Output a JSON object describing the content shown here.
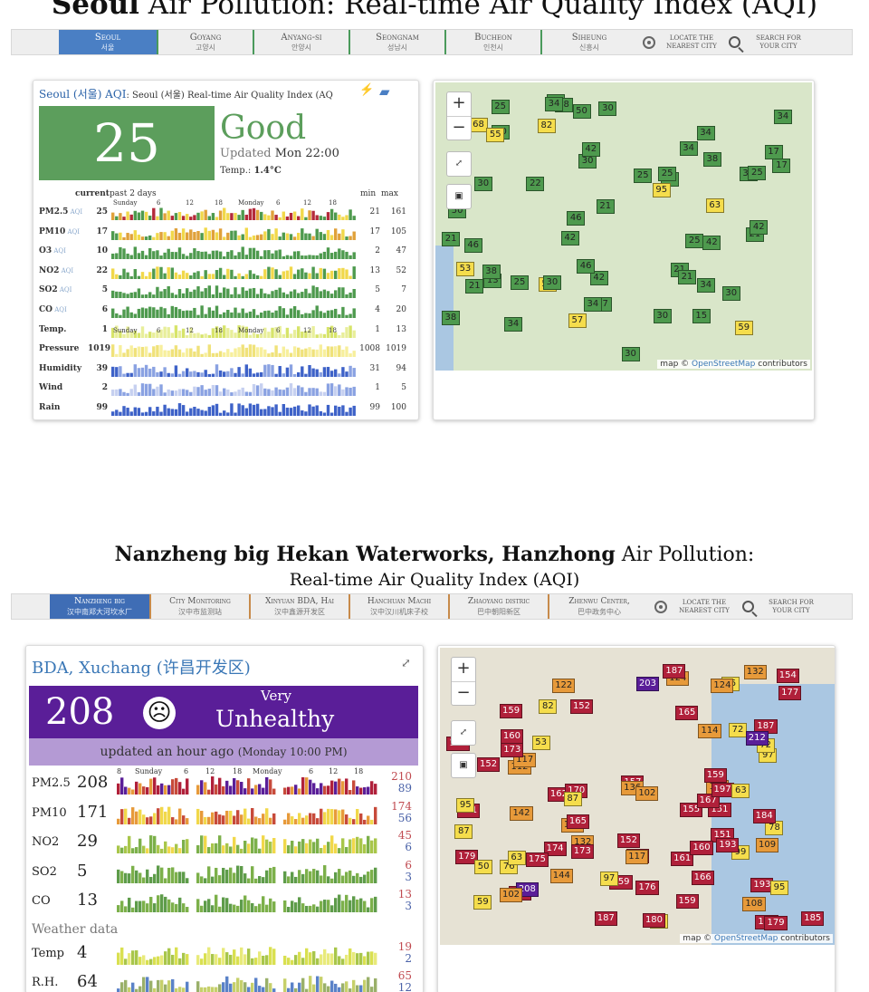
{
  "top": {
    "title_bold": "Seoul",
    "title_rest": " Air Pollution: Real-time Air Quality Index (AQI)",
    "nav": [
      {
        "name": "Seoul",
        "kr": "서울",
        "active": true
      },
      {
        "name": "Goyang",
        "kr": "고양시",
        "active": false
      },
      {
        "name": "Anyang-si",
        "kr": "안양시",
        "active": false
      },
      {
        "name": "Seongnam",
        "kr": "성남시",
        "active": false
      },
      {
        "name": "Bucheon",
        "kr": "인천시",
        "active": false
      },
      {
        "name": "Siheung",
        "kr": "신흥시",
        "active": false
      }
    ],
    "locate_l1": "LOCATE THE",
    "locate_l2": "NEAREST CITY",
    "search_l1": "SEARCH FOR",
    "search_l2": "YOUR CITY"
  },
  "seoul": {
    "head_city": "Seoul (서울) AQI",
    "head_rest": ": Seoul (서울) Real-time Air Quality Index (AQ",
    "aqi": "25",
    "status": "Good",
    "updated_label": "Updated",
    "updated_time": "Mon 22:00",
    "temp_label": "Temp.:",
    "temp_value": "1.4°C",
    "hdr_current": "current",
    "hdr_past": "past 2 days",
    "hdr_min": "min",
    "hdr_max": "max",
    "day_labels": [
      "Sunday",
      "6",
      "12",
      "18",
      "Monday",
      "6",
      "12",
      "18"
    ],
    "aqi_tag": "AQI",
    "rows": [
      {
        "name": "PM2.5",
        "aqi": true,
        "cur": "25",
        "min": "21",
        "max": "161"
      },
      {
        "name": "PM10",
        "aqi": true,
        "cur": "17",
        "min": "17",
        "max": "105"
      },
      {
        "name": "O3",
        "aqi": true,
        "cur": "10",
        "min": "2",
        "max": "47"
      },
      {
        "name": "NO2",
        "aqi": true,
        "cur": "22",
        "min": "13",
        "max": "52"
      },
      {
        "name": "SO2",
        "aqi": true,
        "cur": "5",
        "min": "5",
        "max": "7"
      },
      {
        "name": "CO",
        "aqi": true,
        "cur": "6",
        "min": "4",
        "max": "20"
      },
      {
        "name": "Temp.",
        "aqi": false,
        "cur": "1",
        "min": "1",
        "max": "13"
      },
      {
        "name": "Pressure",
        "aqi": false,
        "cur": "1019",
        "min": "1008",
        "max": "1019"
      },
      {
        "name": "Humidity",
        "aqi": false,
        "cur": "39",
        "min": "31",
        "max": "94"
      },
      {
        "name": "Wind",
        "aqi": false,
        "cur": "2",
        "min": "1",
        "max": "5"
      },
      {
        "name": "Rain",
        "aqi": false,
        "cur": "99",
        "min": "99",
        "max": "100"
      }
    ]
  },
  "map_top": {
    "zoom_in": "+",
    "zoom_out": "−",
    "credit_pre": "map © ",
    "credit_osm": "OpenStreetMap",
    "credit_post": " contributors",
    "markers": [
      "25",
      "21",
      "42",
      "46",
      "82",
      "21",
      "25",
      "25",
      "68",
      "38",
      "38",
      "17",
      "42",
      "34",
      "25",
      "50",
      "50",
      "53",
      "15",
      "59",
      "17",
      "46",
      "21",
      "57",
      "21",
      "30",
      "30",
      "95",
      "30",
      "34",
      "25",
      "34",
      "30",
      "53",
      "30",
      "42",
      "34",
      "30",
      "25",
      "28",
      "46",
      "34",
      "13",
      "20",
      "50",
      "55",
      "42",
      "30",
      "21",
      "34",
      "34",
      "38",
      "34",
      "22",
      "63",
      "42",
      "25",
      "17",
      "21"
    ],
    "marker_colors": {
      "good": "#4e9a4e",
      "moderate": "#f5dd4c"
    }
  },
  "bottom": {
    "title_bold": "Nanzheng big Hekan Waterworks, Hanzhong",
    "title_rest": " Air Pollution:",
    "subtitle": "Real-time Air Quality Index (AQI)",
    "nav": [
      {
        "name": "Nanzheng big",
        "cn": "汉中南郑大河坎水厂",
        "active": true
      },
      {
        "name": "City Monitoring",
        "cn": "汉中市监测站",
        "active": false
      },
      {
        "name": "Xinyuan BDA, Hai",
        "cn": "汉中鑫源开发区",
        "active": false
      },
      {
        "name": "Hanchuan Machi",
        "cn": "汉中汉川机床子校",
        "active": false
      },
      {
        "name": "Zhaoyang distric",
        "cn": "巴中朝阳新区",
        "active": false
      },
      {
        "name": "Zhenwu Center,",
        "cn": "巴中政务中心",
        "active": false
      }
    ],
    "locate_l1": "LOCATE THE",
    "locate_l2": "NEAREST CITY",
    "search_l1": "SEARCH FOR",
    "search_l2": "YOUR CITY"
  },
  "xuchang": {
    "head": "BDA, Xuchang (许昌开发区)",
    "aqi": "208",
    "face": "☹",
    "level_l1": "Very",
    "level_l2": "Unhealthy",
    "updated": "updated an hour ago",
    "updated_time": "(Monday 10:00 PM)",
    "day_labels": [
      "8",
      "Sunday",
      "6",
      "12",
      "18",
      "Monday",
      "6",
      "12",
      "18"
    ],
    "weather_label": "Weather data",
    "rows": [
      {
        "name": "PM2.5",
        "cur": "208",
        "max": "210",
        "min": "89"
      },
      {
        "name": "PM10",
        "cur": "171",
        "max": "174",
        "min": "56"
      },
      {
        "name": "NO2",
        "cur": "29",
        "max": "45",
        "min": "6"
      },
      {
        "name": "SO2",
        "cur": "5",
        "max": "6",
        "min": "3"
      },
      {
        "name": "CO",
        "cur": "13",
        "max": "13",
        "min": "3"
      }
    ],
    "wx_rows": [
      {
        "name": "Temp",
        "cur": "4",
        "max": "19",
        "min": "2"
      },
      {
        "name": "R.H.",
        "cur": "64",
        "max": "65",
        "min": "12"
      }
    ]
  },
  "map_bot": {
    "zoom_in": "+",
    "zoom_out": "−",
    "credit_pre": "map © ",
    "credit_osm": "OpenStreetMap",
    "credit_post": " contributors",
    "markers": [
      "72",
      "161",
      "159",
      "95",
      "104",
      "193",
      "147",
      "76",
      "109",
      "112",
      "97",
      "203",
      "151",
      "99",
      "117",
      "151",
      "82",
      "161",
      "157",
      "124",
      "108",
      "132",
      "63",
      "159",
      "155",
      "162",
      "187",
      "159",
      "174",
      "87",
      "78",
      "152",
      "165",
      "136",
      "175",
      "72",
      "72",
      "187",
      "160",
      "170",
      "167",
      "197",
      "53",
      "59",
      "159",
      "177",
      "173",
      "208",
      "114",
      "212",
      "193",
      "154",
      "186",
      "161",
      "95",
      "76",
      "173",
      "185",
      "179",
      "166",
      "189",
      "180",
      "102",
      "63",
      "152",
      "179",
      "142",
      "184",
      "176",
      "177",
      "102",
      "152",
      "187",
      "165",
      "132",
      "122",
      "124",
      "144",
      "97",
      "160",
      "50",
      "87",
      "117"
    ],
    "marker_colors": {
      "unhealthy": "#b0203a",
      "sensitive": "#e79a3a",
      "moderate": "#f5dd4c",
      "very": "#5a1e98"
    }
  }
}
